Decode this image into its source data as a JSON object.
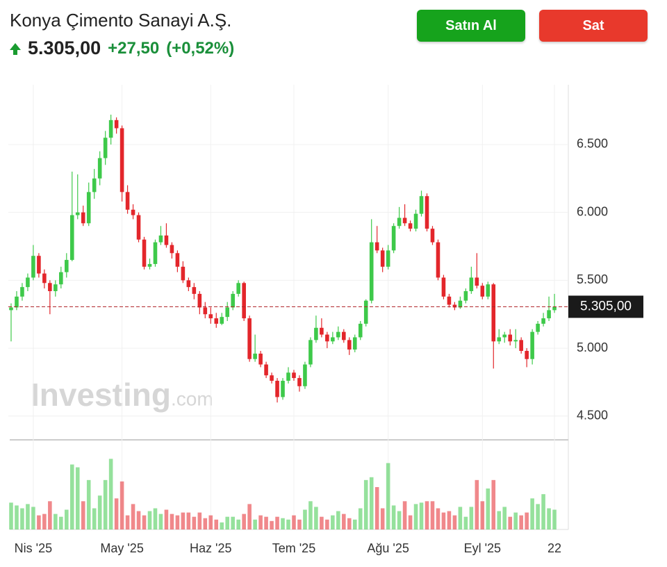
{
  "header": {
    "title": "Konya Çimento Sanayi A.Ş.",
    "price": "5.305,00",
    "change": "+27,50",
    "change_percent": "(+0,52%)"
  },
  "buttons": {
    "buy": "Satın Al",
    "sell": "Sat"
  },
  "watermark": {
    "brand": "Investing",
    "suffix": ".com"
  },
  "chart_data": {
    "type": "candlestick",
    "up_color": "#3ec94a",
    "down_color": "#e3262b",
    "grid": true,
    "ylim": [
      4330,
      6940
    ],
    "yticks": [
      {
        "value": 4500,
        "label": "4.500"
      },
      {
        "value": 5000,
        "label": "5.000"
      },
      {
        "value": 5500,
        "label": "5.500"
      },
      {
        "value": 6000,
        "label": "6.000"
      },
      {
        "value": 6500,
        "label": "6.500"
      }
    ],
    "xlim": [
      -0.5,
      100.5
    ],
    "xticks": [
      {
        "value": 4,
        "label": "Nis '25"
      },
      {
        "value": 20,
        "label": "May '25"
      },
      {
        "value": 36,
        "label": "Haz '25"
      },
      {
        "value": 51,
        "label": "Tem '25"
      },
      {
        "value": 68,
        "label": "Ağu '25"
      },
      {
        "value": 85,
        "label": "Eyl '25"
      },
      {
        "value": 98,
        "label": "22"
      }
    ],
    "last_price": {
      "value": 5305,
      "label": "5.305,00"
    },
    "candles": [
      [
        5280,
        5330,
        5050,
        5300
      ],
      [
        5300,
        5420,
        5280,
        5380
      ],
      [
        5380,
        5480,
        5350,
        5450
      ],
      [
        5450,
        5550,
        5420,
        5520
      ],
      [
        5520,
        5760,
        5500,
        5680
      ],
      [
        5680,
        5700,
        5520,
        5550
      ],
      [
        5550,
        5580,
        5440,
        5480
      ],
      [
        5480,
        5500,
        5250,
        5420
      ],
      [
        5420,
        5500,
        5380,
        5470
      ],
      [
        5470,
        5600,
        5440,
        5560
      ],
      [
        5560,
        5700,
        5520,
        5650
      ],
      [
        5650,
        6300,
        5640,
        5980
      ],
      [
        5980,
        6280,
        5950,
        6000
      ],
      [
        6000,
        6050,
        5900,
        5920
      ],
      [
        5920,
        6220,
        5900,
        6150
      ],
      [
        6150,
        6320,
        6100,
        6250
      ],
      [
        6250,
        6450,
        6200,
        6400
      ],
      [
        6400,
        6600,
        6350,
        6550
      ],
      [
        6550,
        6720,
        6500,
        6680
      ],
      [
        6680,
        6700,
        6580,
        6620
      ],
      [
        6620,
        6640,
        6080,
        6150
      ],
      [
        6150,
        6200,
        5990,
        6020
      ],
      [
        6020,
        6060,
        5950,
        5980
      ],
      [
        5980,
        6000,
        5780,
        5800
      ],
      [
        5800,
        5820,
        5580,
        5600
      ],
      [
        5600,
        5660,
        5580,
        5620
      ],
      [
        5620,
        5800,
        5600,
        5780
      ],
      [
        5780,
        5900,
        5760,
        5830
      ],
      [
        5830,
        5920,
        5740,
        5760
      ],
      [
        5760,
        5780,
        5660,
        5700
      ],
      [
        5700,
        5720,
        5560,
        5600
      ],
      [
        5600,
        5640,
        5480,
        5500
      ],
      [
        5500,
        5520,
        5420,
        5450
      ],
      [
        5450,
        5480,
        5360,
        5400
      ],
      [
        5400,
        5420,
        5250,
        5300
      ],
      [
        5300,
        5340,
        5220,
        5250
      ],
      [
        5250,
        5300,
        5180,
        5220
      ],
      [
        5220,
        5260,
        5150,
        5180
      ],
      [
        5180,
        5260,
        5170,
        5230
      ],
      [
        5230,
        5340,
        5200,
        5300
      ],
      [
        5300,
        5420,
        5280,
        5400
      ],
      [
        5400,
        5500,
        5380,
        5480
      ],
      [
        5480,
        5490,
        5200,
        5220
      ],
      [
        5220,
        5240,
        4900,
        4920
      ],
      [
        4920,
        5100,
        4900,
        4960
      ],
      [
        4960,
        4980,
        4860,
        4880
      ],
      [
        4880,
        4900,
        4780,
        4800
      ],
      [
        4800,
        4820,
        4740,
        4760
      ],
      [
        4760,
        4780,
        4600,
        4640
      ],
      [
        4640,
        4780,
        4620,
        4760
      ],
      [
        4760,
        4860,
        4740,
        4820
      ],
      [
        4820,
        4840,
        4760,
        4780
      ],
      [
        4780,
        4800,
        4680,
        4720
      ],
      [
        4720,
        4900,
        4700,
        4880
      ],
      [
        4880,
        5080,
        4860,
        5060
      ],
      [
        5060,
        5240,
        5040,
        5150
      ],
      [
        5150,
        5220,
        5080,
        5100
      ],
      [
        5100,
        5120,
        5000,
        5050
      ],
      [
        5050,
        5120,
        5030,
        5080
      ],
      [
        5080,
        5160,
        5060,
        5120
      ],
      [
        5120,
        5140,
        5040,
        5060
      ],
      [
        5060,
        5080,
        4950,
        4990
      ],
      [
        4990,
        5100,
        4970,
        5080
      ],
      [
        5080,
        5200,
        5060,
        5180
      ],
      [
        5180,
        5360,
        5160,
        5350
      ],
      [
        5350,
        5950,
        5330,
        5780
      ],
      [
        5780,
        5900,
        5700,
        5720
      ],
      [
        5720,
        5740,
        5560,
        5600
      ],
      [
        5600,
        5760,
        5580,
        5720
      ],
      [
        5720,
        5920,
        5700,
        5900
      ],
      [
        5900,
        6040,
        5880,
        5960
      ],
      [
        5960,
        6060,
        5900,
        5920
      ],
      [
        5920,
        5940,
        5860,
        5880
      ],
      [
        5880,
        6020,
        5860,
        5990
      ],
      [
        5990,
        6160,
        5970,
        6120
      ],
      [
        6120,
        6140,
        5860,
        5880
      ],
      [
        5880,
        5900,
        5760,
        5780
      ],
      [
        5780,
        5800,
        5500,
        5520
      ],
      [
        5520,
        5540,
        5360,
        5380
      ],
      [
        5380,
        5400,
        5300,
        5320
      ],
      [
        5320,
        5340,
        5280,
        5300
      ],
      [
        5300,
        5380,
        5290,
        5350
      ],
      [
        5350,
        5440,
        5330,
        5420
      ],
      [
        5420,
        5600,
        5400,
        5520
      ],
      [
        5520,
        5700,
        5440,
        5460
      ],
      [
        5460,
        5480,
        5360,
        5380
      ],
      [
        5380,
        5490,
        5360,
        5470
      ],
      [
        5470,
        5480,
        4850,
        5050
      ],
      [
        5050,
        5140,
        5030,
        5080
      ],
      [
        5080,
        5120,
        5040,
        5100
      ],
      [
        5100,
        5140,
        5020,
        5050
      ],
      [
        5050,
        5140,
        5000,
        5060
      ],
      [
        5060,
        5080,
        4960,
        4980
      ],
      [
        4980,
        5000,
        4860,
        4920
      ],
      [
        4920,
        5140,
        4880,
        5120
      ],
      [
        5120,
        5200,
        5100,
        5180
      ],
      [
        5180,
        5260,
        5160,
        5220
      ],
      [
        5220,
        5380,
        5200,
        5280
      ],
      [
        5280,
        5400,
        5260,
        5305
      ]
    ],
    "vlim": [
      0,
      120
    ],
    "volumes": [
      38,
      34,
      30,
      36,
      32,
      20,
      22,
      40,
      22,
      18,
      28,
      92,
      88,
      40,
      70,
      30,
      48,
      70,
      100,
      44,
      68,
      20,
      36,
      26,
      20,
      26,
      30,
      22,
      28,
      22,
      20,
      24,
      24,
      18,
      24,
      16,
      20,
      14,
      10,
      18,
      18,
      14,
      22,
      36,
      14,
      20,
      18,
      12,
      18,
      16,
      14,
      20,
      14,
      28,
      40,
      32,
      18,
      14,
      20,
      26,
      22,
      16,
      14,
      30,
      70,
      74,
      60,
      30,
      94,
      34,
      26,
      40,
      20,
      36,
      38,
      40,
      40,
      30,
      24,
      26,
      20,
      32,
      18,
      32,
      70,
      40,
      58,
      70,
      26,
      32,
      18,
      24,
      20,
      24,
      44,
      36,
      50,
      30,
      28
    ]
  }
}
